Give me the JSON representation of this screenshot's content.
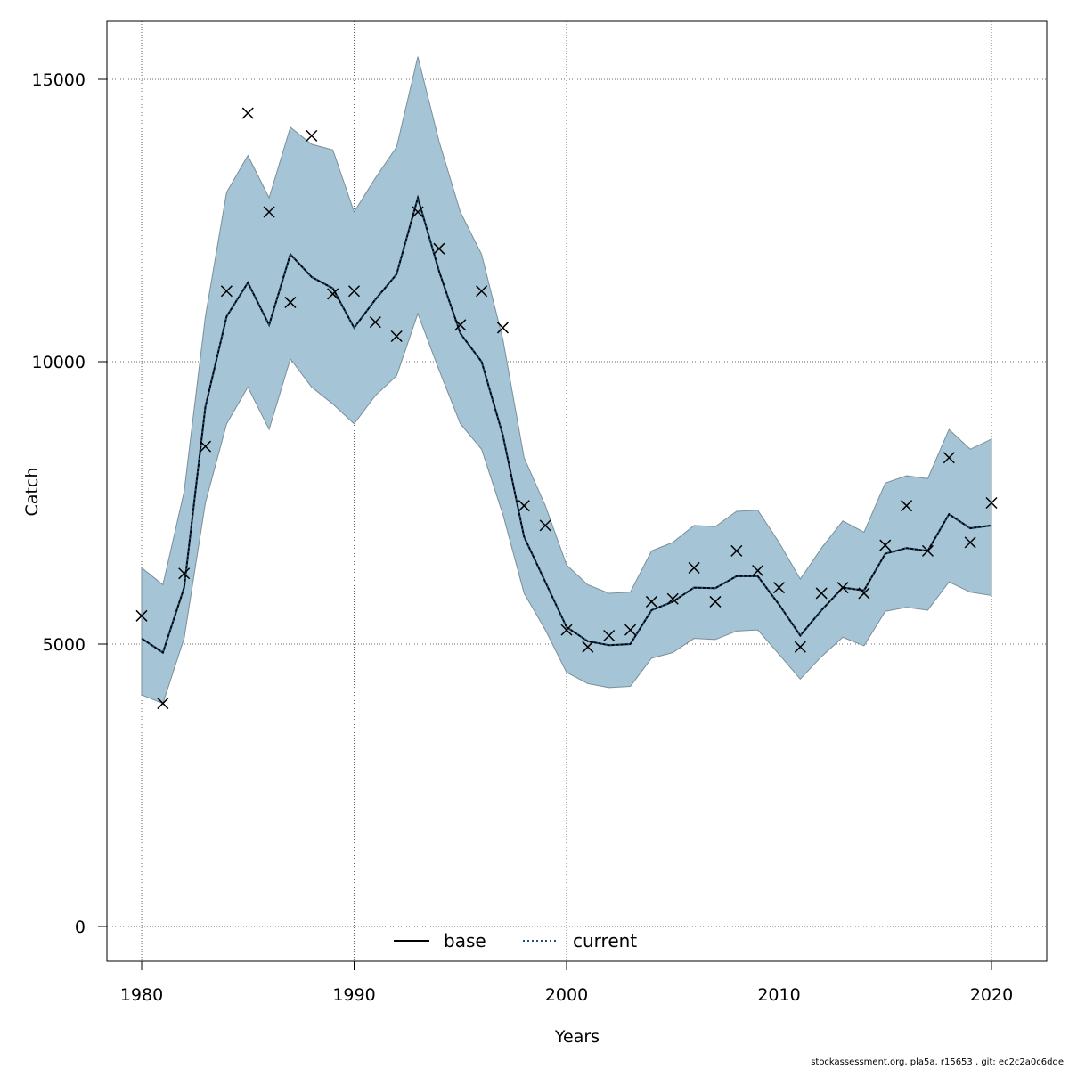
{
  "chart_data": {
    "type": "line",
    "title": "",
    "xlabel": "Years",
    "ylabel": "Catch",
    "xlim": [
      1978.4,
      2022.6
    ],
    "ylim": [
      -600,
      16000
    ],
    "x_ticks": [
      1980,
      1990,
      2000,
      2010,
      2020
    ],
    "x_tick_labels": [
      "1980",
      "1990",
      "2000",
      "2010",
      "2020"
    ],
    "y_ticks": [
      0,
      5000,
      10000,
      15000
    ],
    "y_tick_labels": [
      "0",
      "5000",
      "10000",
      "15000"
    ],
    "grid": true,
    "legend_position": "bottom-center",
    "colors": {
      "band": "#a5c4d5",
      "band_edge": "#7a8f9a",
      "current": "#1f4e79",
      "base": "#000000",
      "observed": "#000000",
      "grid": "#666666"
    },
    "years": [
      1980,
      1981,
      1982,
      1983,
      1984,
      1985,
      1986,
      1987,
      1988,
      1989,
      1990,
      1991,
      1992,
      1993,
      1994,
      1995,
      1996,
      1997,
      1998,
      1999,
      2000,
      2001,
      2002,
      2003,
      2004,
      2005,
      2006,
      2007,
      2008,
      2009,
      2010,
      2011,
      2012,
      2013,
      2014,
      2015,
      2016,
      2017,
      2018,
      2019,
      2020
    ],
    "series": [
      {
        "name": "base",
        "style": "solid",
        "values": [
          5100,
          4850,
          6000,
          9200,
          10800,
          11400,
          10650,
          11900,
          11500,
          11300,
          10600,
          11100,
          11550,
          12900,
          11600,
          10500,
          10000,
          8700,
          6900,
          6100,
          5300,
          5050,
          4980,
          5000,
          5600,
          5750,
          6000,
          5990,
          6200,
          6200,
          5700,
          5150,
          5600,
          6000,
          5950,
          6600,
          6700,
          6650,
          7300,
          7050,
          7100
        ]
      },
      {
        "name": "current",
        "style": "dotted",
        "values": [
          5100,
          4850,
          6000,
          9200,
          10800,
          11400,
          10650,
          11900,
          11500,
          11300,
          10600,
          11100,
          11550,
          12900,
          11600,
          10500,
          10000,
          8700,
          6900,
          6100,
          5300,
          5050,
          4980,
          5000,
          5600,
          5750,
          6000,
          5990,
          6200,
          6200,
          5700,
          5150,
          5600,
          6000,
          5950,
          6600,
          6700,
          6650,
          7300,
          7050,
          7100
        ]
      }
    ],
    "band": {
      "lower": [
        4100,
        3950,
        5100,
        7500,
        8900,
        9550,
        8800,
        10050,
        9550,
        9250,
        8900,
        9400,
        9750,
        10850,
        9850,
        8900,
        8450,
        7300,
        5900,
        5250,
        4500,
        4300,
        4230,
        4250,
        4750,
        4850,
        5100,
        5080,
        5230,
        5250,
        4820,
        4380,
        4780,
        5120,
        4970,
        5580,
        5650,
        5600,
        6100,
        5920,
        5860
      ],
      "upper": [
        6350,
        6050,
        7700,
        10800,
        13000,
        13650,
        12900,
        14150,
        13850,
        13750,
        12650,
        13250,
        13800,
        15400,
        13900,
        12650,
        11900,
        10400,
        8300,
        7450,
        6400,
        6050,
        5900,
        5920,
        6650,
        6800,
        7100,
        7080,
        7350,
        7370,
        6800,
        6150,
        6700,
        7180,
        6980,
        7850,
        7980,
        7930,
        8800,
        8450,
        8630
      ]
    },
    "observed": [
      5500,
      3950,
      6250,
      8500,
      11250,
      14400,
      12650,
      11050,
      14000,
      11200,
      11250,
      10700,
      10450,
      12650,
      12000,
      10650,
      11250,
      10600,
      7450,
      7100,
      5250,
      4950,
      5150,
      5250,
      5750,
      5800,
      6350,
      5750,
      6650,
      6300,
      6000,
      4950,
      5900,
      6000,
      5900,
      6750,
      7450,
      6650,
      8300,
      6800,
      7500
    ]
  },
  "legend": {
    "base_label": "base",
    "current_label": "current"
  },
  "footer": "stockassessment.org, pla5a, r15653 , git: ec2c2a0c6dde"
}
